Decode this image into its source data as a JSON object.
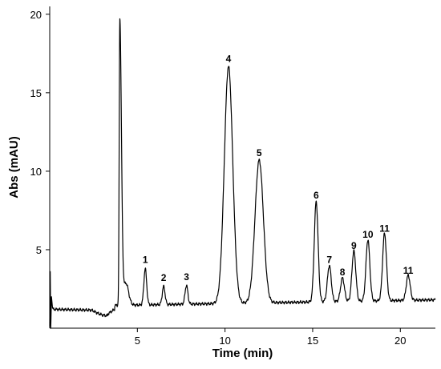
{
  "chart_data": {
    "type": "line",
    "xlabel": "Time (min)",
    "ylabel": "Abs (mAU)",
    "xlim": [
      0,
      22
    ],
    "ylim": [
      0,
      20.5
    ],
    "x_ticks": [
      5,
      10,
      15,
      20
    ],
    "y_ticks": [
      5,
      10,
      15,
      20
    ],
    "grid": false,
    "legend": "none",
    "baseline_mAU": 1.2,
    "system_peak": {
      "t": 4.0,
      "height": 19.4
    },
    "peaks": [
      {
        "label": "1",
        "t": 5.45,
        "height": 3.8
      },
      {
        "label": "2",
        "t": 6.5,
        "height": 2.65
      },
      {
        "label": "3",
        "t": 7.8,
        "height": 2.7
      },
      {
        "label": "4",
        "t": 10.2,
        "height": 16.6
      },
      {
        "label": "5",
        "t": 11.95,
        "height": 10.6
      },
      {
        "label": "6",
        "t": 15.2,
        "height": 7.9
      },
      {
        "label": "7",
        "t": 15.95,
        "height": 3.8
      },
      {
        "label": "8",
        "t": 16.7,
        "height": 3.0
      },
      {
        "label": "9",
        "t": 17.35,
        "height": 4.7
      },
      {
        "label": "10",
        "t": 18.15,
        "height": 5.4
      },
      {
        "label": "11",
        "t": 19.1,
        "height": 5.8
      },
      {
        "label": "11",
        "t": 20.45,
        "height": 3.1
      }
    ]
  }
}
